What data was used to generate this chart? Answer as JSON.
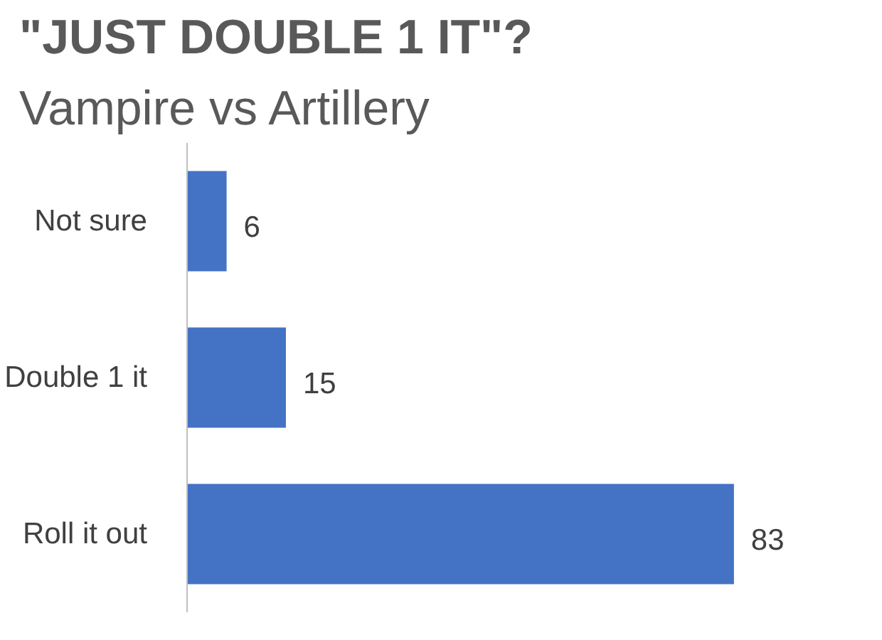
{
  "chart_data": {
    "type": "bar",
    "orientation": "horizontal",
    "title": "\"JUST DOUBLE 1 IT\"?",
    "subtitle": "Vampire vs Artillery",
    "categories": [
      "Not sure",
      "Double 1 it",
      "Roll it out"
    ],
    "values": [
      6,
      15,
      83
    ],
    "color": "#4472c4",
    "data_labels": true,
    "grid": false
  }
}
